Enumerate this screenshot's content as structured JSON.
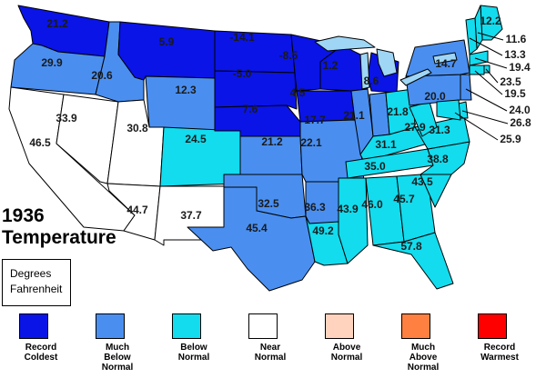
{
  "title": {
    "year": "1936",
    "subject": "Temperature"
  },
  "units_box": {
    "line1": "Degrees",
    "line2": "Fahrenheit"
  },
  "colors": {
    "record_coldest": "#0a14e6",
    "much_below": "#4a8ff0",
    "below": "#12dcee",
    "near": "#ffffff",
    "above": "#ffd3bd",
    "much_above": "#ff8040",
    "record_warmest": "#ff0000",
    "lakes": "#9fd6f5"
  },
  "legend": [
    {
      "key": "record_coldest",
      "label": "Record Coldest",
      "lines": [
        "Record",
        "Coldest"
      ]
    },
    {
      "key": "much_below",
      "label": "Much Below Normal",
      "lines": [
        "Much",
        "Below",
        "Normal"
      ]
    },
    {
      "key": "below",
      "label": "Below Normal",
      "lines": [
        "Below",
        "Normal"
      ]
    },
    {
      "key": "near",
      "label": "Near Normal",
      "lines": [
        "Near",
        "Normal"
      ]
    },
    {
      "key": "above",
      "label": "Above Normal",
      "lines": [
        "Above",
        "Normal"
      ]
    },
    {
      "key": "much_above",
      "label": "Much Above Normal",
      "lines": [
        "Much",
        "Above",
        "Normal"
      ]
    },
    {
      "key": "record_warmest",
      "label": "Record Warmest",
      "lines": [
        "Record",
        "Warmest"
      ]
    }
  ],
  "states": [
    {
      "id": "WA",
      "value": "21.2",
      "category": "record_coldest"
    },
    {
      "id": "OR",
      "value": "29.9",
      "category": "much_below"
    },
    {
      "id": "CA",
      "value": "46.5",
      "category": "near"
    },
    {
      "id": "NV",
      "value": "33.9",
      "category": "near"
    },
    {
      "id": "ID",
      "value": "20.6",
      "category": "much_below"
    },
    {
      "id": "MT",
      "value": "5.9",
      "category": "record_coldest"
    },
    {
      "id": "WY",
      "value": "12.3",
      "category": "much_below"
    },
    {
      "id": "UT",
      "value": "30.8",
      "category": "near"
    },
    {
      "id": "AZ",
      "value": "44.7",
      "category": "near"
    },
    {
      "id": "NM",
      "value": "37.7",
      "category": "near"
    },
    {
      "id": "CO",
      "value": "24.5",
      "category": "below"
    },
    {
      "id": "ND",
      "value": "-14.1",
      "category": "record_coldest"
    },
    {
      "id": "SD",
      "value": "-5.0",
      "category": "record_coldest"
    },
    {
      "id": "NE",
      "value": "7.6",
      "category": "record_coldest"
    },
    {
      "id": "KS",
      "value": "21.2",
      "category": "much_below"
    },
    {
      "id": "OK",
      "value": "32.5",
      "category": "much_below"
    },
    {
      "id": "TX",
      "value": "45.4",
      "category": "much_below"
    },
    {
      "id": "MN",
      "value": "-8.5",
      "category": "record_coldest"
    },
    {
      "id": "IA",
      "value": "4.5",
      "category": "record_coldest"
    },
    {
      "id": "MO",
      "value": "22.1",
      "category": "much_below"
    },
    {
      "id": "AR",
      "value": "36.3",
      "category": "much_below"
    },
    {
      "id": "LA",
      "value": "49.2",
      "category": "below"
    },
    {
      "id": "WI",
      "value": "1.2",
      "category": "record_coldest"
    },
    {
      "id": "IL",
      "value": "17.7",
      "category": "much_below"
    },
    {
      "id": "MI",
      "value": "8.6",
      "category": "record_coldest"
    },
    {
      "id": "IN",
      "value": "21.1",
      "category": "much_below"
    },
    {
      "id": "OH",
      "value": "21.8",
      "category": "below"
    },
    {
      "id": "KY",
      "value": "31.1",
      "category": "below"
    },
    {
      "id": "TN",
      "value": "35.0",
      "category": "below"
    },
    {
      "id": "MS",
      "value": "43.9",
      "category": "below"
    },
    {
      "id": "AL",
      "value": "46.0",
      "category": "below"
    },
    {
      "id": "GA",
      "value": "45.7",
      "category": "below"
    },
    {
      "id": "FL",
      "value": "57.8",
      "category": "below"
    },
    {
      "id": "SC",
      "value": "43.5",
      "category": "below"
    },
    {
      "id": "NC",
      "value": "38.8",
      "category": "below"
    },
    {
      "id": "VA",
      "value": "31.3",
      "category": "below"
    },
    {
      "id": "WV",
      "value": "27.9",
      "category": "below"
    },
    {
      "id": "PA",
      "value": "20.0",
      "category": "much_below"
    },
    {
      "id": "NY",
      "value": "14.7",
      "category": "much_below"
    },
    {
      "id": "ME",
      "value": "12.2",
      "category": "below"
    },
    {
      "id": "NH",
      "value": "11.6",
      "category": "below"
    },
    {
      "id": "VT",
      "value": "13.3",
      "category": "below"
    },
    {
      "id": "MA",
      "value": "19.4",
      "category": "below"
    },
    {
      "id": "RI",
      "value": "23.5",
      "category": "below"
    },
    {
      "id": "CT",
      "value": "19.5",
      "category": "below"
    },
    {
      "id": "NJ",
      "value": "24.0",
      "category": "much_below"
    },
    {
      "id": "DE",
      "value": "26.8",
      "category": "below"
    },
    {
      "id": "MD",
      "value": "25.9",
      "category": "below"
    }
  ]
}
